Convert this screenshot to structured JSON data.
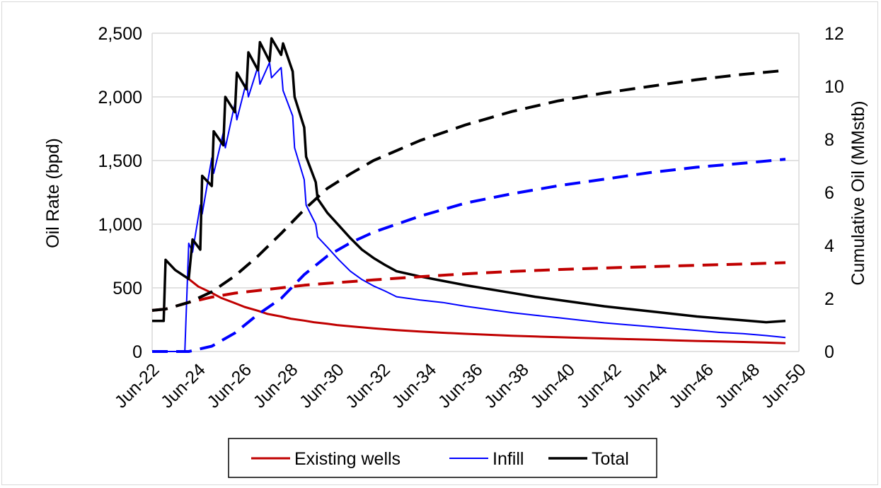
{
  "chart_data": {
    "type": "line",
    "title": "",
    "ylabel": "Oil Rate (bpd)",
    "y2label": "Cumulative Oil (MMstb)",
    "ylim": [
      0,
      2500
    ],
    "y2lim": [
      0,
      12
    ],
    "yticks": [
      "0",
      "500",
      "1,000",
      "1,500",
      "2,000",
      "2,500"
    ],
    "y2ticks": [
      "0",
      "2",
      "4",
      "6",
      "8",
      "10",
      "12"
    ],
    "xticks": [
      "Jun-22",
      "Jun-24",
      "Jun-26",
      "Jun-28",
      "Jun-30",
      "Jun-32",
      "Jun-34",
      "Jun-36",
      "Jun-38",
      "Jun-40",
      "Jun-42",
      "Jun-44",
      "Jun-46",
      "Jun-48",
      "Jun-50"
    ],
    "xlim": [
      "2022-06",
      "2050-06"
    ],
    "grid": "horizontal",
    "legend_position": "bottom",
    "series": [
      {
        "name": "Existing wells",
        "axis": "left",
        "color": "#c00000",
        "style": "solid",
        "x": [
          "2023-01",
          "2023-06",
          "2024-01",
          "2024-06",
          "2025-01",
          "2025-06",
          "2026-01",
          "2026-06",
          "2027-01",
          "2027-06",
          "2028-01",
          "2028-06",
          "2029-01",
          "2029-06",
          "2030-01",
          "2030-06",
          "2031-01",
          "2032-01",
          "2033-01",
          "2034-01",
          "2035-01",
          "2036-01",
          "2037-01",
          "2038-01",
          "2039-01",
          "2040-01",
          "2041-01",
          "2042-01",
          "2043-01",
          "2044-01",
          "2045-01",
          "2046-01",
          "2047-01",
          "2048-01",
          "2049-01",
          "2049-11"
        ],
        "values": [
          720,
          640,
          570,
          510,
          460,
          420,
          380,
          350,
          320,
          295,
          275,
          258,
          243,
          230,
          218,
          208,
          198,
          182,
          168,
          157,
          147,
          139,
          131,
          124,
          118,
          112,
          107,
          102,
          97,
          93,
          88,
          83,
          79,
          75,
          70,
          65
        ]
      },
      {
        "name": "Infill",
        "axis": "left",
        "color": "#0000ff",
        "style": "solid",
        "x": [
          "2022-06",
          "2022-07",
          "2023-01",
          "2023-06",
          "2023-11",
          "2024-01",
          "2024-03",
          "2024-07",
          "2024-08",
          "2025-01",
          "2025-02",
          "2025-07",
          "2025-08",
          "2026-01",
          "2026-02",
          "2026-07",
          "2026-08",
          "2027-01",
          "2027-02",
          "2027-07",
          "2027-08",
          "2028-01",
          "2028-02",
          "2028-07",
          "2028-08",
          "2029-01",
          "2029-02",
          "2029-07",
          "2029-08",
          "2030-01",
          "2030-07",
          "2031-01",
          "2031-07",
          "2032-01",
          "2032-07",
          "2033-01",
          "2034-01",
          "2035-01",
          "2036-01",
          "2037-01",
          "2038-01",
          "2039-01",
          "2040-01",
          "2041-01",
          "2042-01",
          "2043-01",
          "2044-01",
          "2045-01",
          "2046-01",
          "2047-01",
          "2048-01",
          "2049-01",
          "2049-11"
        ],
        "values": [
          0,
          0,
          0,
          0,
          0,
          850,
          780,
          1150,
          1080,
          1520,
          1400,
          1720,
          1600,
          1950,
          1820,
          2120,
          2000,
          2240,
          2100,
          2270,
          2150,
          2230,
          2050,
          1850,
          1600,
          1350,
          1150,
          1000,
          900,
          820,
          720,
          630,
          565,
          515,
          475,
          430,
          405,
          385,
          355,
          330,
          305,
          285,
          265,
          245,
          225,
          210,
          195,
          180,
          165,
          150,
          140,
          125,
          110
        ]
      },
      {
        "name": "Total",
        "axis": "left",
        "color": "#000000",
        "style": "solid",
        "x": [
          "2022-06",
          "2022-12",
          "2023-01",
          "2023-06",
          "2024-01",
          "2024-03",
          "2024-07",
          "2024-08",
          "2025-01",
          "2025-02",
          "2025-07",
          "2025-08",
          "2026-01",
          "2026-02",
          "2026-07",
          "2026-08",
          "2027-01",
          "2027-02",
          "2027-07",
          "2027-08",
          "2028-01",
          "2028-02",
          "2028-07",
          "2028-08",
          "2029-01",
          "2029-02",
          "2029-07",
          "2029-08",
          "2030-01",
          "2030-07",
          "2031-01",
          "2031-07",
          "2032-01",
          "2032-07",
          "2033-01",
          "2034-01",
          "2035-01",
          "2036-01",
          "2037-01",
          "2038-01",
          "2039-01",
          "2040-01",
          "2041-01",
          "2042-01",
          "2043-01",
          "2044-01",
          "2045-01",
          "2046-01",
          "2047-01",
          "2048-01",
          "2049-01",
          "2049-11"
        ],
        "values": [
          240,
          240,
          720,
          640,
          570,
          880,
          800,
          1380,
          1300,
          1730,
          1620,
          2000,
          1880,
          2190,
          2060,
          2350,
          2210,
          2430,
          2280,
          2460,
          2330,
          2420,
          2200,
          2000,
          1760,
          1530,
          1330,
          1200,
          1090,
          990,
          890,
          800,
          735,
          680,
          630,
          590,
          555,
          520,
          490,
          460,
          430,
          405,
          380,
          355,
          335,
          315,
          295,
          275,
          260,
          245,
          230,
          240
        ]
      },
      {
        "name": "Existing wells (cumulative)",
        "axis": "right",
        "color": "#c00000",
        "style": "dashed",
        "x": [
          "2022-06",
          "2023-01",
          "2024-01",
          "2025-01",
          "2026-01",
          "2027-01",
          "2028-01",
          "2029-01",
          "2030-01",
          "2032-01",
          "2034-01",
          "2036-01",
          "2038-01",
          "2040-01",
          "2042-01",
          "2044-01",
          "2046-01",
          "2048-01",
          "2049-11"
        ],
        "values": [
          1.55,
          1.6,
          1.85,
          2.05,
          2.2,
          2.3,
          2.4,
          2.5,
          2.57,
          2.7,
          2.82,
          2.93,
          3.02,
          3.09,
          3.15,
          3.2,
          3.25,
          3.3,
          3.35
        ]
      },
      {
        "name": "Infill (cumulative)",
        "axis": "right",
        "color": "#0000ff",
        "style": "dashed",
        "x": [
          "2022-06",
          "2024-01",
          "2025-01",
          "2026-01",
          "2027-01",
          "2028-01",
          "2029-01",
          "2030-01",
          "2031-01",
          "2032-01",
          "2034-01",
          "2036-01",
          "2038-01",
          "2040-01",
          "2042-01",
          "2044-01",
          "2046-01",
          "2048-01",
          "2049-11"
        ],
        "values": [
          0,
          0,
          0.2,
          0.7,
          1.4,
          2.0,
          2.9,
          3.6,
          4.1,
          4.5,
          5.1,
          5.6,
          5.95,
          6.25,
          6.5,
          6.75,
          6.95,
          7.1,
          7.25
        ]
      },
      {
        "name": "Total (cumulative)",
        "axis": "right",
        "color": "#000000",
        "style": "dashed",
        "x": [
          "2022-06",
          "2023-01",
          "2024-01",
          "2025-01",
          "2026-01",
          "2027-01",
          "2028-01",
          "2029-01",
          "2030-01",
          "2031-01",
          "2032-01",
          "2034-01",
          "2036-01",
          "2038-01",
          "2040-01",
          "2042-01",
          "2044-01",
          "2046-01",
          "2048-01",
          "2049-11"
        ],
        "values": [
          1.55,
          1.6,
          1.85,
          2.25,
          2.85,
          3.6,
          4.45,
          5.35,
          6.15,
          6.7,
          7.2,
          7.95,
          8.55,
          9.05,
          9.45,
          9.75,
          10.0,
          10.25,
          10.45,
          10.6
        ]
      }
    ],
    "legend": [
      {
        "label": "Existing wells",
        "color": "#c00000"
      },
      {
        "label": "Infill",
        "color": "#0000ff"
      },
      {
        "label": "Total",
        "color": "#000000"
      }
    ]
  }
}
